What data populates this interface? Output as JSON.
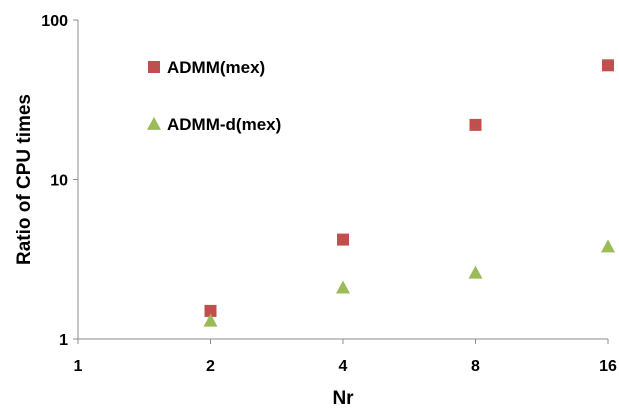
{
  "chart_data": {
    "type": "scatter",
    "xlabel": "Nr",
    "ylabel": "Ratio of CPU times",
    "x_scale": "log2",
    "y_scale": "log10",
    "xlim": [
      1,
      16
    ],
    "ylim": [
      1,
      100
    ],
    "x_ticks": [
      "1",
      "2",
      "4",
      "8",
      "16"
    ],
    "y_ticks": [
      "1",
      "10",
      "100"
    ],
    "grid": false,
    "legend_position": "top-left",
    "series": [
      {
        "name": "ADMM(mex)",
        "marker": "square",
        "color": "#c0504d",
        "x": [
          2,
          4,
          8,
          16
        ],
        "y": [
          1.5,
          4.2,
          22,
          52
        ]
      },
      {
        "name": "ADMM-d(mex)",
        "marker": "triangle",
        "color": "#9bbb59",
        "x": [
          2,
          4,
          8,
          16
        ],
        "y": [
          1.3,
          2.1,
          2.6,
          3.8
        ]
      }
    ]
  }
}
